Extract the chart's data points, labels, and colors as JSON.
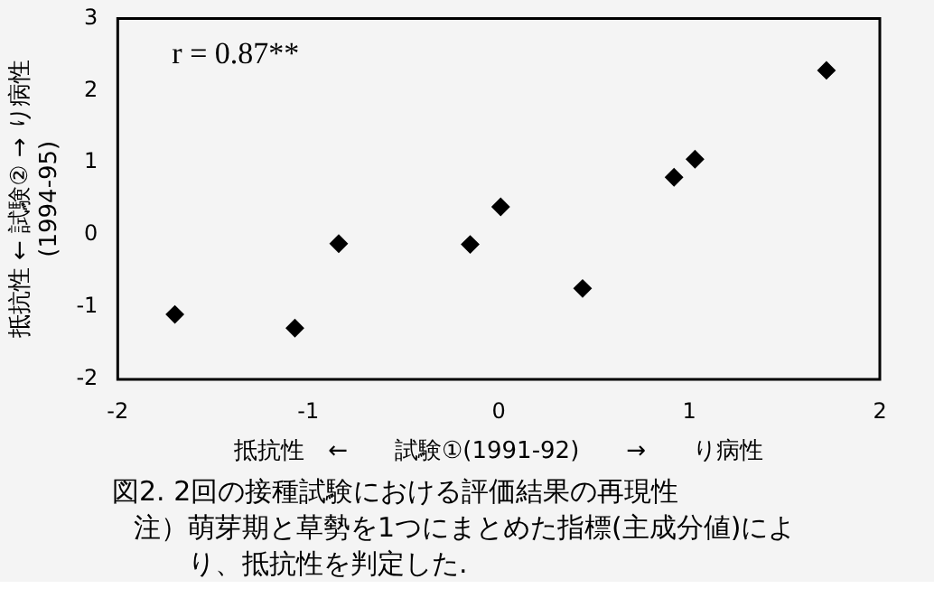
{
  "chart_data": {
    "type": "scatter",
    "title": "図2. 2回の接種試験における評価結果の再現性",
    "xlabel": "抵抗性　←　　試験①(1991-92)　　→　　り病性",
    "ylabel": "抵抗性 ← 試験② → り病性\n(1994-95)",
    "annotations": [
      "r = 0.87**",
      "注）萌芽期と草勢を1つにまとめた指標(主成分値)により、抵抗性を判定した."
    ],
    "series": [
      {
        "color": "#000000",
        "x": [
          -1.7,
          -1.07,
          -0.84,
          -0.15,
          0.01,
          0.44,
          0.92,
          1.03,
          1.72
        ],
        "values": [
          -1.1,
          -1.29,
          -0.12,
          -0.13,
          0.39,
          -0.74,
          0.8,
          1.05,
          2.28
        ]
      }
    ],
    "xlim": [
      -2,
      2
    ],
    "xticks": [
      -2,
      -1,
      0,
      1,
      2
    ],
    "ylim": [
      -2,
      3
    ],
    "yticks": [
      -2,
      -1,
      0,
      1,
      2,
      3
    ],
    "grid": false,
    "legend": false,
    "marker": "diamond"
  }
}
